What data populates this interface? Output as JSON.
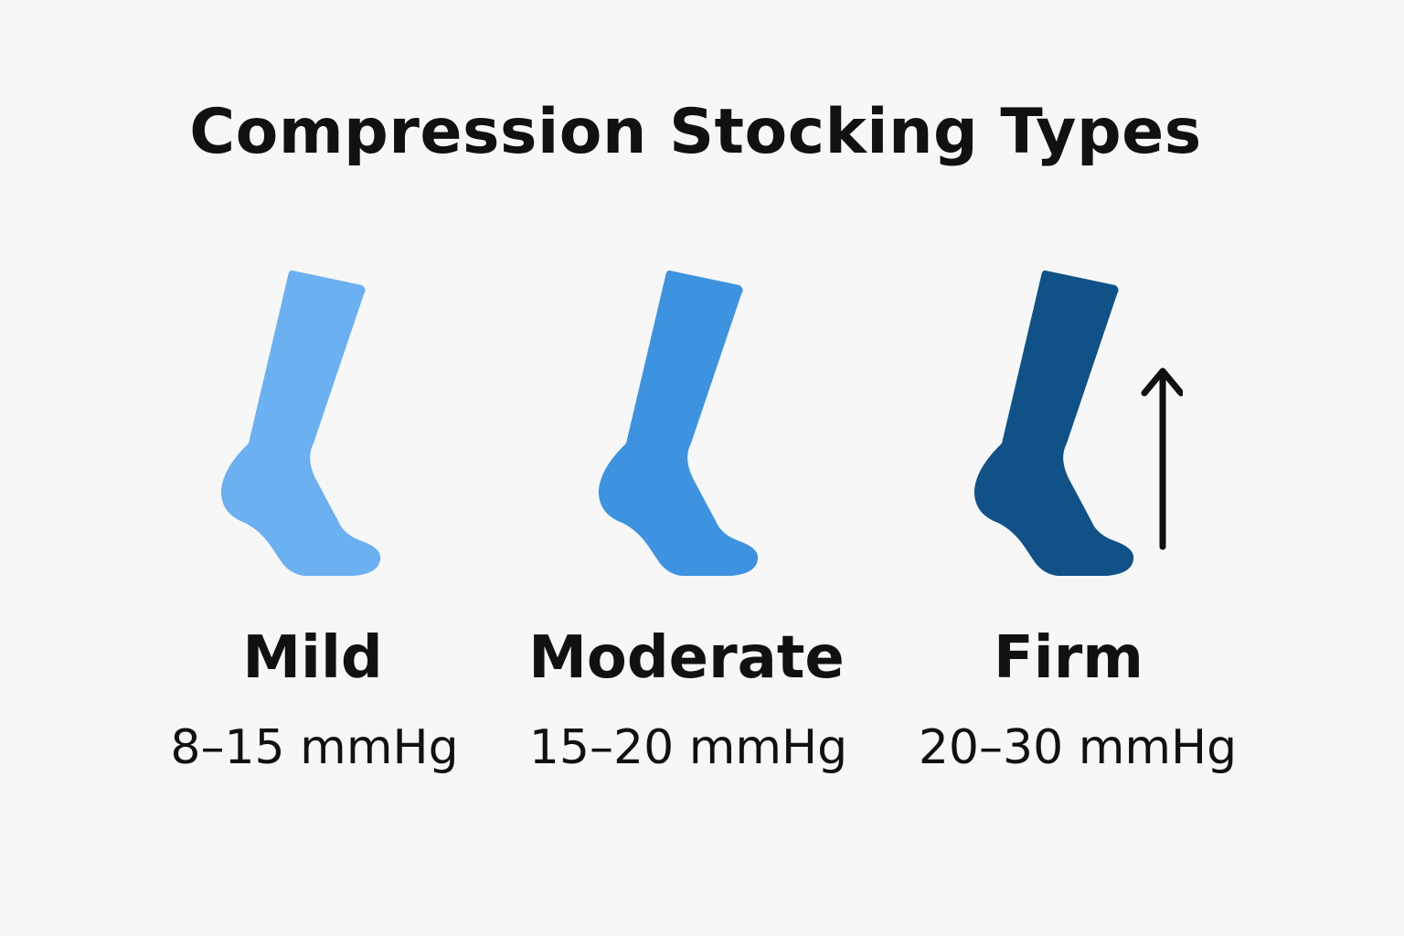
{
  "title": "Compression Stocking Types",
  "levels": [
    {
      "name": "Mild",
      "range": "8–15 mmHg",
      "color": "#6bb0f0"
    },
    {
      "name": "Moderate",
      "range": "15–20 mmHg",
      "color": "#3d93e0"
    },
    {
      "name": "Firm",
      "range": "20–30 mmHg",
      "color": "#105288"
    }
  ],
  "arrow": {
    "direction": "up",
    "color": "#111111"
  }
}
